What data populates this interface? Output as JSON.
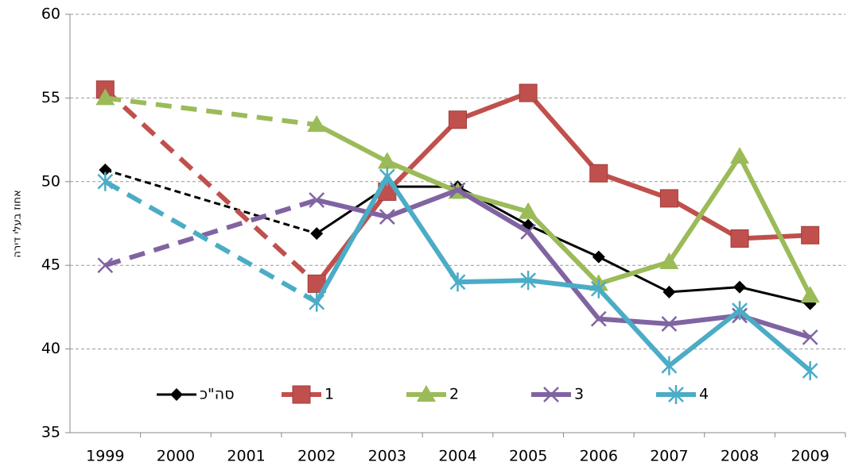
{
  "chart_data": {
    "type": "line",
    "y_label": "אחוז בעלי דירה",
    "categories": [
      "1999",
      "2000",
      "2001",
      "2002",
      "2003",
      "2004",
      "2005",
      "2006",
      "2007",
      "2008",
      "2009"
    ],
    "series": [
      {
        "name": "סה\"כ",
        "color": "#000000",
        "marker": "diamond",
        "values": [
          50.7,
          null,
          null,
          46.9,
          49.7,
          49.7,
          47.4,
          45.5,
          43.4,
          43.7,
          42.7
        ]
      },
      {
        "name": "1",
        "color": "#c0504d",
        "marker": "square",
        "values": [
          55.5,
          null,
          null,
          43.9,
          49.4,
          53.7,
          55.3,
          50.5,
          49.0,
          46.6,
          46.8
        ]
      },
      {
        "name": "2",
        "color": "#9bbb59",
        "marker": "triangle",
        "values": [
          55.0,
          null,
          null,
          53.4,
          51.2,
          49.4,
          48.2,
          43.9,
          45.2,
          51.5,
          43.2
        ]
      },
      {
        "name": "3",
        "color": "#8064a2",
        "marker": "x",
        "values": [
          45.0,
          null,
          null,
          48.9,
          47.9,
          49.5,
          47.0,
          41.8,
          41.5,
          42.0,
          40.7
        ]
      },
      {
        "name": "4",
        "color": "#4bacc6",
        "marker": "star",
        "values": [
          50.0,
          null,
          null,
          42.8,
          50.3,
          44.0,
          44.1,
          43.6,
          39.0,
          42.3,
          38.7
        ]
      }
    ],
    "ylim": [
      35,
      60
    ],
    "yticks": [
      35,
      40,
      45,
      50,
      55,
      60
    ],
    "grid": true,
    "legend": "bottom"
  }
}
